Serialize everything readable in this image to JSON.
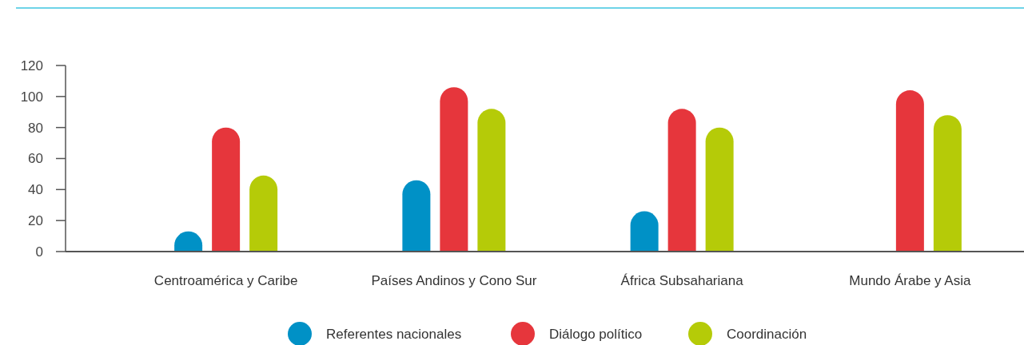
{
  "chart_data": {
    "type": "bar",
    "categories": [
      "Centroamérica y Caribe",
      "Países Andinos y Cono Sur",
      "África Subsahariana",
      "Mundo Árabe y Asia"
    ],
    "series": [
      {
        "name": "Referentes nacionales",
        "color": "#0091c6",
        "values": [
          13,
          46,
          26,
          null
        ]
      },
      {
        "name": "Diálogo político",
        "color": "#e6363c",
        "values": [
          80,
          106,
          92,
          104
        ]
      },
      {
        "name": "Coordinación",
        "color": "#b5cb08",
        "values": [
          49,
          92,
          80,
          88
        ]
      }
    ],
    "ylim": [
      0,
      120
    ],
    "yticks": [
      0,
      20,
      40,
      60,
      80,
      100,
      120
    ],
    "grid": false,
    "legend": "bottom"
  }
}
